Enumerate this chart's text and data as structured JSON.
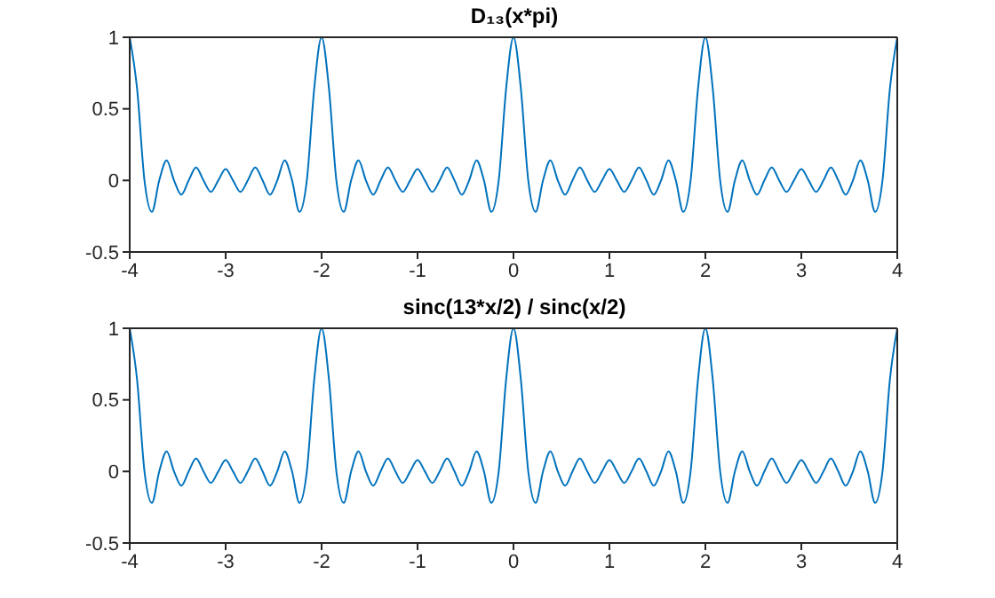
{
  "chart_data": [
    {
      "type": "line",
      "title": "D₁₃(x*pi)",
      "xlim": [
        -4,
        4
      ],
      "xticks": [
        -4,
        -3,
        -2,
        -1,
        0,
        1,
        2,
        3,
        4
      ],
      "ylim": [
        -0.5,
        1
      ],
      "yticks": [
        -0.5,
        0,
        0.5,
        1
      ],
      "grid": false,
      "legend": false,
      "marker": "none",
      "line_style": "solid",
      "x": [
        -4,
        -3.923,
        -3.846,
        -3.769,
        -3.692,
        -3.615,
        -3.538,
        -3.462,
        -3.385,
        -3.308,
        -3.231,
        -3.154,
        -3.077,
        -3,
        -2.923,
        -2.846,
        -2.769,
        -2.692,
        -2.615,
        -2.538,
        -2.462,
        -2.385,
        -2.308,
        -2.231,
        -2.154,
        -2.077,
        -2,
        -1.923,
        -1.846,
        -1.769,
        -1.692,
        -1.615,
        -1.538,
        -1.462,
        -1.385,
        -1.308,
        -1.231,
        -1.154,
        -1.077,
        -1,
        -0.923,
        -0.846,
        -0.769,
        -0.692,
        -0.615,
        -0.538,
        -0.462,
        -0.385,
        -0.308,
        -0.231,
        -0.154,
        -0.077,
        0,
        0.077,
        0.154,
        0.231,
        0.308,
        0.385,
        0.462,
        0.538,
        0.615,
        0.692,
        0.769,
        0.846,
        0.923,
        1,
        1.077,
        1.154,
        1.231,
        1.308,
        1.385,
        1.462,
        1.538,
        1.615,
        1.692,
        1.769,
        1.846,
        1.923,
        2,
        2.077,
        2.154,
        2.231,
        2.308,
        2.385,
        2.462,
        2.538,
        2.615,
        2.692,
        2.769,
        2.846,
        2.923,
        3,
        3.077,
        3.154,
        3.231,
        3.308,
        3.385,
        3.462,
        3.538,
        3.615,
        3.692,
        3.769,
        3.846,
        3.923,
        4
      ],
      "series": [
        {
          "color": "#0072bd",
          "values": [
            1,
            0.64,
            0,
            -0.22,
            0,
            0.14,
            0,
            -0.1,
            0,
            0.09,
            0,
            -0.08,
            0,
            0.08,
            0,
            -0.08,
            0,
            0.09,
            0,
            -0.1,
            0,
            0.14,
            0,
            -0.22,
            0,
            0.64,
            1,
            0.64,
            0,
            -0.22,
            0,
            0.14,
            0,
            -0.1,
            0,
            0.09,
            0,
            -0.08,
            0,
            0.08,
            0,
            -0.08,
            0,
            0.09,
            0,
            -0.1,
            0,
            0.14,
            0,
            -0.22,
            0,
            0.64,
            1,
            0.64,
            0,
            -0.22,
            0,
            0.14,
            0,
            -0.1,
            0,
            0.09,
            0,
            -0.08,
            0,
            0.08,
            0,
            -0.08,
            0,
            0.09,
            0,
            -0.1,
            0,
            0.14,
            0,
            -0.22,
            0,
            0.64,
            1,
            0.64,
            0,
            -0.22,
            0,
            0.14,
            0,
            -0.1,
            0,
            0.09,
            0,
            -0.08,
            0,
            0.08,
            0,
            -0.08,
            0,
            0.09,
            0,
            -0.1,
            0,
            0.14,
            0,
            -0.22,
            0,
            0.64,
            1
          ]
        }
      ]
    },
    {
      "type": "line",
      "title": "sinc(13*x/2) / sinc(x/2)",
      "xlim": [
        -4,
        4
      ],
      "xticks": [
        -4,
        -3,
        -2,
        -1,
        0,
        1,
        2,
        3,
        4
      ],
      "ylim": [
        -0.5,
        1
      ],
      "yticks": [
        -0.5,
        0,
        0.5,
        1
      ],
      "grid": false,
      "legend": false,
      "marker": "none",
      "line_style": "solid",
      "x": [
        -4,
        -3.923,
        -3.846,
        -3.769,
        -3.692,
        -3.615,
        -3.538,
        -3.462,
        -3.385,
        -3.308,
        -3.231,
        -3.154,
        -3.077,
        -3,
        -2.923,
        -2.846,
        -2.769,
        -2.692,
        -2.615,
        -2.538,
        -2.462,
        -2.385,
        -2.308,
        -2.231,
        -2.154,
        -2.077,
        -2,
        -1.923,
        -1.846,
        -1.769,
        -1.692,
        -1.615,
        -1.538,
        -1.462,
        -1.385,
        -1.308,
        -1.231,
        -1.154,
        -1.077,
        -1,
        -0.923,
        -0.846,
        -0.769,
        -0.692,
        -0.615,
        -0.538,
        -0.462,
        -0.385,
        -0.308,
        -0.231,
        -0.154,
        -0.077,
        0,
        0.077,
        0.154,
        0.231,
        0.308,
        0.385,
        0.462,
        0.538,
        0.615,
        0.692,
        0.769,
        0.846,
        0.923,
        1,
        1.077,
        1.154,
        1.231,
        1.308,
        1.385,
        1.462,
        1.538,
        1.615,
        1.692,
        1.769,
        1.846,
        1.923,
        2,
        2.077,
        2.154,
        2.231,
        2.308,
        2.385,
        2.462,
        2.538,
        2.615,
        2.692,
        2.769,
        2.846,
        2.923,
        3,
        3.077,
        3.154,
        3.231,
        3.308,
        3.385,
        3.462,
        3.538,
        3.615,
        3.692,
        3.769,
        3.846,
        3.923,
        4
      ],
      "series": [
        {
          "color": "#0072bd",
          "values": [
            1,
            0.64,
            0,
            -0.22,
            0,
            0.14,
            0,
            -0.1,
            0,
            0.09,
            0,
            -0.08,
            0,
            0.08,
            0,
            -0.08,
            0,
            0.09,
            0,
            -0.1,
            0,
            0.14,
            0,
            -0.22,
            0,
            0.64,
            1,
            0.64,
            0,
            -0.22,
            0,
            0.14,
            0,
            -0.1,
            0,
            0.09,
            0,
            -0.08,
            0,
            0.08,
            0,
            -0.08,
            0,
            0.09,
            0,
            -0.1,
            0,
            0.14,
            0,
            -0.22,
            0,
            0.64,
            1,
            0.64,
            0,
            -0.22,
            0,
            0.14,
            0,
            -0.1,
            0,
            0.09,
            0,
            -0.08,
            0,
            0.08,
            0,
            -0.08,
            0,
            0.09,
            0,
            -0.1,
            0,
            0.14,
            0,
            -0.22,
            0,
            0.64,
            1,
            0.64,
            0,
            -0.22,
            0,
            0.14,
            0,
            -0.1,
            0,
            0.09,
            0,
            -0.08,
            0,
            0.08,
            0,
            -0.08,
            0,
            0.09,
            0,
            -0.1,
            0,
            0.14,
            0,
            -0.22,
            0,
            0.64,
            1
          ]
        }
      ]
    }
  ]
}
